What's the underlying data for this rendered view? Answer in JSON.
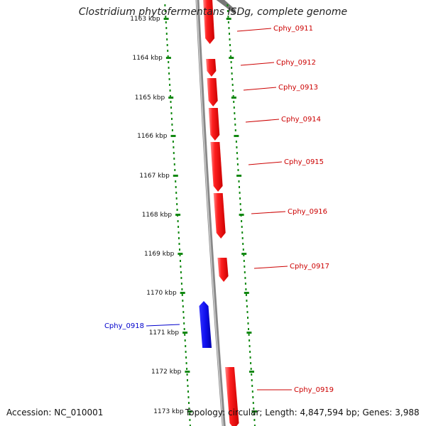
{
  "title": "Clostridium phytofermentans ISDg, complete genome",
  "accession": "Accession: NC_010001",
  "stats": "Topology: circular; Length: 4,847,594 bp; Genes: 3,988",
  "colors": {
    "forward_gene": "#ee1111",
    "forward_gene_light": "#ff8080",
    "reverse_gene": "#1111ee",
    "reverse_gene_light": "#7777ff",
    "forward_label": "#cc0000",
    "reverse_label": "#0000cc",
    "backbone": "#888888",
    "tick": "#118811",
    "scale_text": "#111111"
  },
  "scale": {
    "labels": [
      "1163 kbp",
      "1164 kbp",
      "1165 kbp",
      "1166 kbp",
      "1167 kbp",
      "1168 kbp",
      "1169 kbp",
      "1170 kbp",
      "1171 kbp",
      "1172 kbp",
      "1173 kbp"
    ]
  },
  "genes": [
    {
      "label": "Cphy_0911",
      "strand": "forward"
    },
    {
      "label": "Cphy_0912",
      "strand": "forward"
    },
    {
      "label": "Cphy_0913",
      "strand": "forward"
    },
    {
      "label": "Cphy_0914",
      "strand": "forward"
    },
    {
      "label": "Cphy_0915",
      "strand": "forward"
    },
    {
      "label": "Cphy_0916",
      "strand": "forward"
    },
    {
      "label": "Cphy_0917",
      "strand": "forward"
    },
    {
      "label": "Cphy_0918",
      "strand": "reverse"
    },
    {
      "label": "Cphy_0919",
      "strand": "forward"
    }
  ]
}
